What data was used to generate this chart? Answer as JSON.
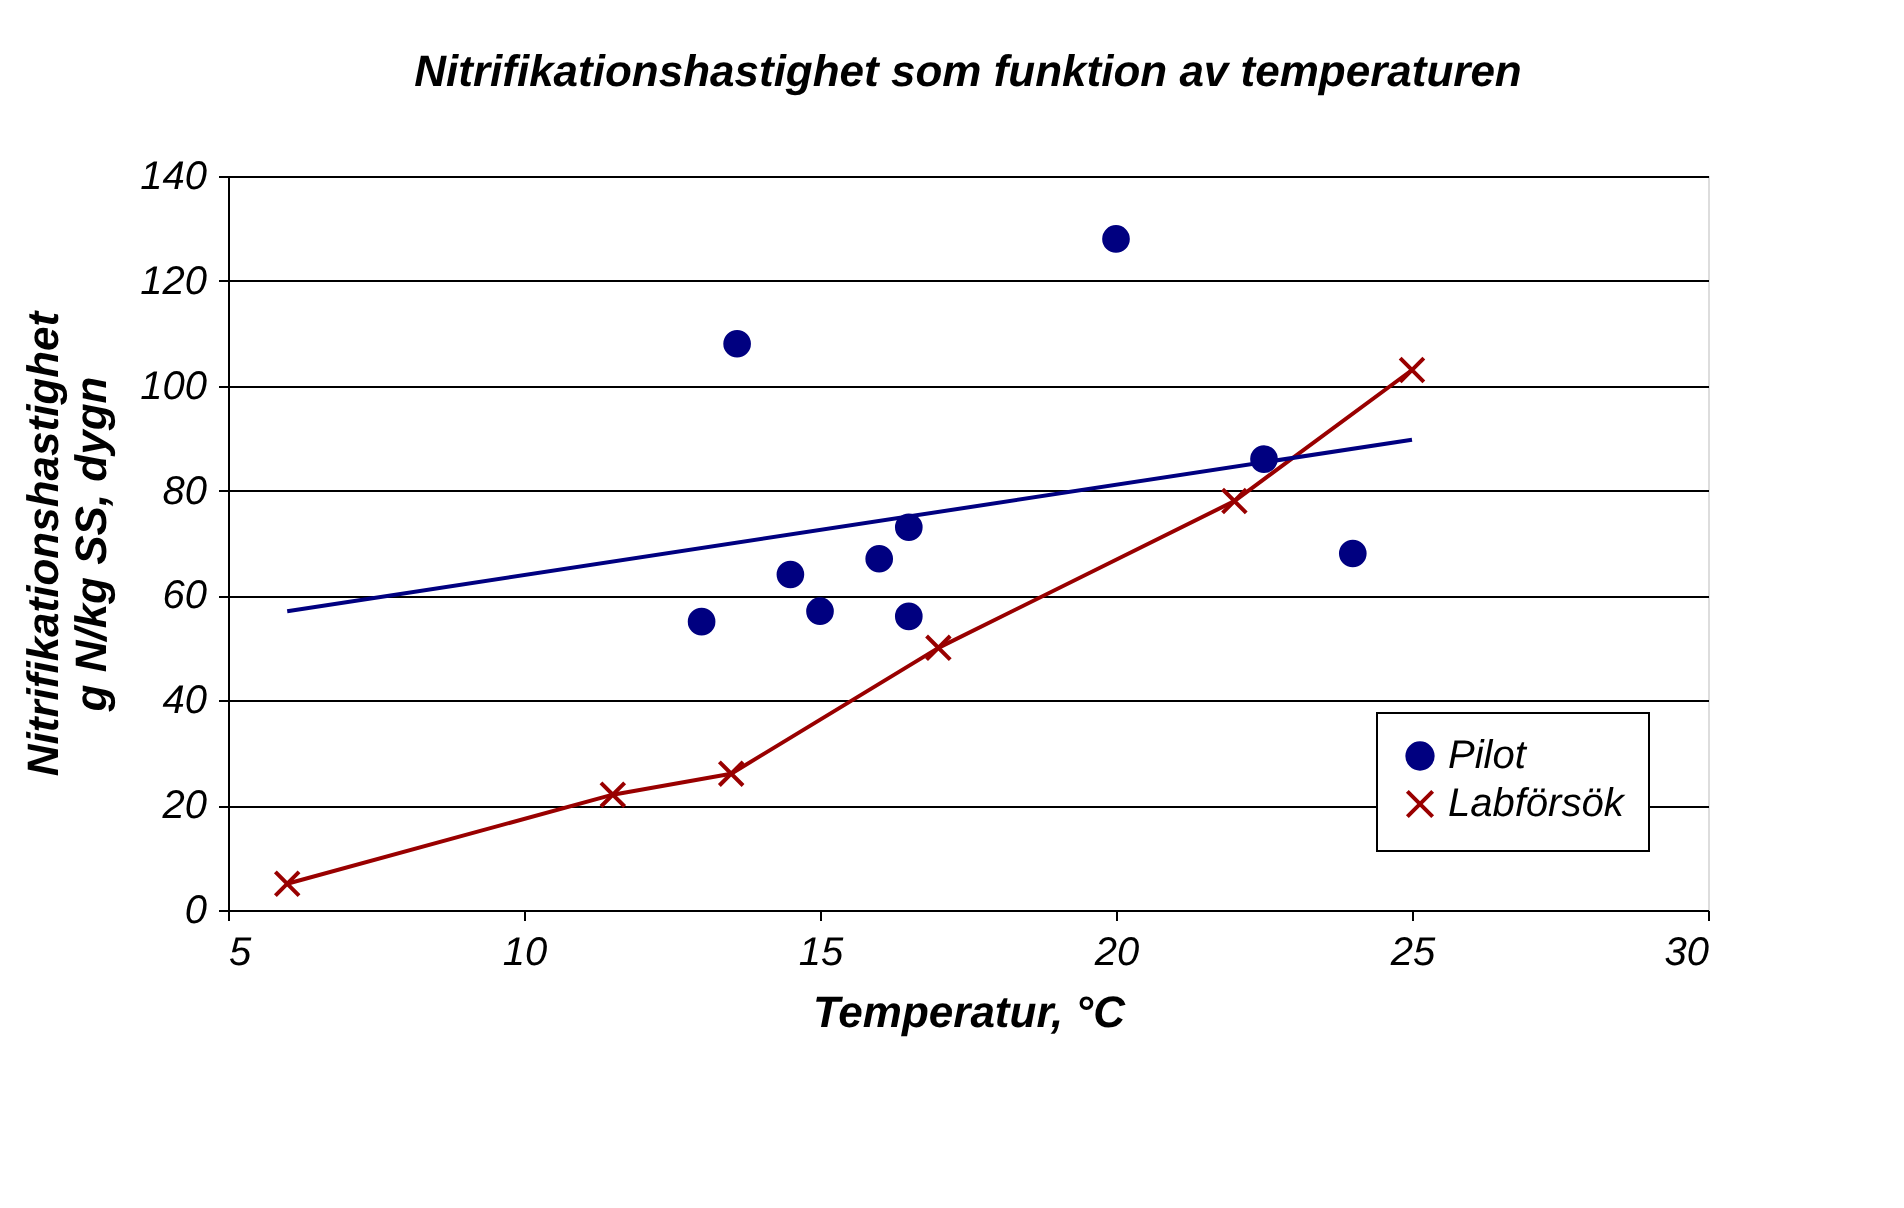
{
  "chart_data": {
    "type": "scatter",
    "title": "Nitrifikationshastighet som funktion av temperaturen",
    "xlabel": "Temperatur, °C",
    "ylabel": "Nitrifikationshastighet\ng N/kg SS, dygn",
    "xlim": [
      5,
      30
    ],
    "xticks": [
      5,
      10,
      15,
      20,
      25,
      30
    ],
    "ylim": [
      0,
      140
    ],
    "yticks": [
      0,
      20,
      40,
      60,
      80,
      100,
      120,
      140
    ],
    "grid": "y",
    "legend": "bottom right",
    "series": [
      {
        "name": "Pilot",
        "type": "scatter",
        "marker": "circle",
        "color": "#000080",
        "x": [
          13,
          13.6,
          14.5,
          15,
          16,
          16.5,
          16.5,
          20,
          22.5,
          24
        ],
        "values": [
          55,
          108,
          64,
          57,
          67,
          73,
          56,
          128,
          86,
          68
        ]
      },
      {
        "name": "Labförsök",
        "type": "line",
        "marker": "cross",
        "color": "#990000",
        "x": [
          6,
          11.5,
          13.5,
          17,
          22,
          25
        ],
        "values": [
          5,
          22,
          26,
          50,
          78,
          103
        ]
      },
      {
        "type": "line",
        "marker": "none",
        "color": "#000080",
        "x": [
          6,
          25
        ],
        "values": [
          57,
          89.7
        ]
      }
    ]
  }
}
